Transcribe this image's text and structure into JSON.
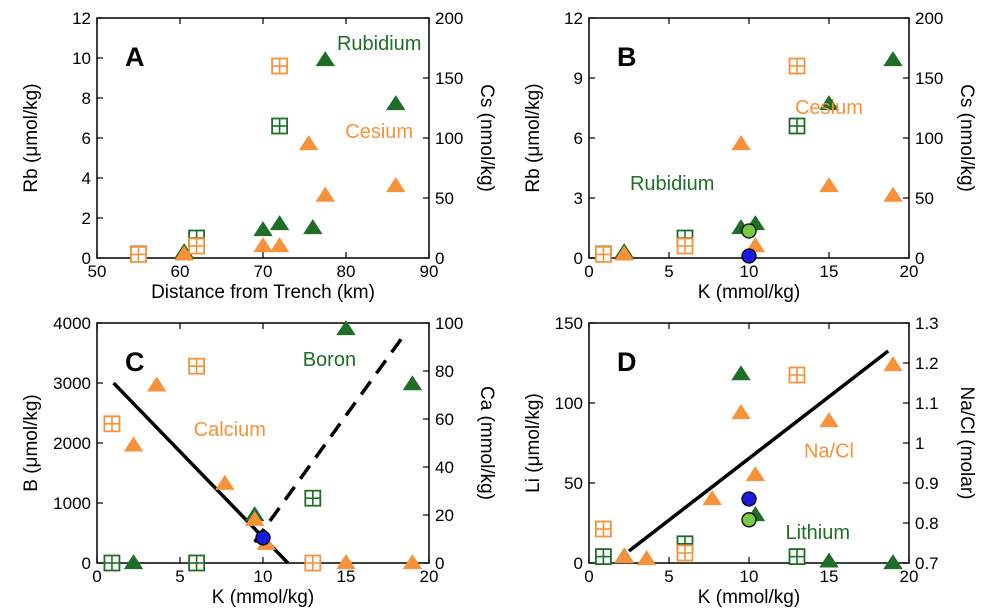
{
  "colors": {
    "orange": "#f7923a",
    "green": "#1e6e27",
    "blue": "#1a1ae0",
    "lightgreen": "#7ac943",
    "line": "#000000"
  },
  "chart_data": [
    {
      "id": "A",
      "type": "scatter",
      "letter": "A",
      "xlabel": "Distance from Trench (km)",
      "ylabel": "Rb (μmol/kg)",
      "y2label": "Cs (nmol/kg)",
      "xlim": [
        50,
        90
      ],
      "ylim": [
        0,
        12
      ],
      "y2lim": [
        0,
        200
      ],
      "xticks": [
        "50",
        "60",
        "70",
        "80",
        "90"
      ],
      "yticks": [
        "0",
        "2",
        "4",
        "6",
        "8",
        "10",
        "12"
      ],
      "y2ticks": [
        "0",
        "50",
        "100",
        "150",
        "200"
      ],
      "annotations": [
        {
          "text": "Rubidium",
          "color": "green",
          "x": 84,
          "y": 10.4
        },
        {
          "text": "Cesium",
          "color": "orange",
          "x": 84,
          "y": 6.0
        }
      ],
      "series": [
        {
          "axis": "left",
          "marker": "boxplus",
          "color": "green",
          "points": [
            [
              55,
              0.2
            ],
            [
              62,
              1.0
            ],
            [
              72,
              6.6
            ]
          ]
        },
        {
          "axis": "left",
          "marker": "triangle",
          "color": "green",
          "points": [
            [
              60.5,
              0.3
            ],
            [
              70,
              1.4
            ],
            [
              72,
              1.7
            ],
            [
              76,
              1.5
            ],
            [
              77.5,
              9.9
            ],
            [
              86,
              7.7
            ]
          ]
        },
        {
          "axis": "right",
          "marker": "boxplus",
          "color": "orange",
          "points": [
            [
              55,
              3
            ],
            [
              62,
              10
            ],
            [
              72,
              160
            ]
          ]
        },
        {
          "axis": "right",
          "marker": "triangle",
          "color": "orange",
          "points": [
            [
              60.5,
              3
            ],
            [
              70,
              10
            ],
            [
              72,
              10
            ],
            [
              75.5,
              95
            ],
            [
              77.5,
              52
            ],
            [
              86,
              60
            ]
          ]
        }
      ]
    },
    {
      "id": "B",
      "type": "scatter",
      "letter": "B",
      "xlabel": "K (mmol/kg)",
      "ylabel": "Rb (μmol/kg)",
      "y2label": "Cs (nmol/kg)",
      "xlim": [
        0,
        20
      ],
      "ylim": [
        0,
        12
      ],
      "y2lim": [
        0,
        200
      ],
      "xticks": [
        "0",
        "5",
        "10",
        "15",
        "20"
      ],
      "yticks": [
        "0",
        "3",
        "6",
        "9",
        "12"
      ],
      "y2ticks": [
        "0",
        "50",
        "100",
        "150",
        "200"
      ],
      "annotations": [
        {
          "text": "Rubidium",
          "color": "green",
          "x": 5.2,
          "y": 3.4
        },
        {
          "text": "Cesium",
          "color": "orange",
          "x": 15,
          "y": 7.2
        }
      ],
      "series": [
        {
          "axis": "left",
          "marker": "boxplus",
          "color": "green",
          "points": [
            [
              0.9,
              0.2
            ],
            [
              6,
              1.0
            ],
            [
              13,
              6.6
            ]
          ]
        },
        {
          "axis": "left",
          "marker": "triangle",
          "color": "green",
          "points": [
            [
              2.2,
              0.3
            ],
            [
              9.5,
              1.5
            ],
            [
              10.4,
              1.7
            ],
            [
              15,
              7.7
            ],
            [
              19,
              9.9
            ]
          ]
        },
        {
          "axis": "right",
          "marker": "boxplus",
          "color": "orange",
          "points": [
            [
              0.9,
              3
            ],
            [
              6,
              10
            ],
            [
              13,
              160
            ]
          ]
        },
        {
          "axis": "right",
          "marker": "triangle",
          "color": "orange",
          "points": [
            [
              2.2,
              3
            ],
            [
              9.5,
              95
            ],
            [
              10.4,
              10
            ],
            [
              15,
              60
            ],
            [
              19,
              52
            ]
          ]
        },
        {
          "axis": "left",
          "marker": "circle",
          "color": "lightgreen",
          "points": [
            [
              10,
              1.35
            ]
          ]
        },
        {
          "axis": "left",
          "marker": "circle",
          "color": "blue",
          "points": [
            [
              10,
              0.1
            ]
          ]
        }
      ]
    },
    {
      "id": "C",
      "type": "scatter",
      "letter": "C",
      "xlabel": "K (mmol/kg)",
      "ylabel": "B (μmol/kg)",
      "y2label": "Ca (mmol/kg)",
      "xlim": [
        0,
        20
      ],
      "ylim": [
        0,
        4000
      ],
      "y2lim": [
        0,
        100
      ],
      "xticks": [
        "0",
        "5",
        "10",
        "15",
        "20"
      ],
      "yticks": [
        "0",
        "1000",
        "2000",
        "3000",
        "4000"
      ],
      "y2ticks": [
        "0",
        "20",
        "40",
        "60",
        "80",
        "100"
      ],
      "annotations": [
        {
          "text": "Boron",
          "color": "green",
          "x": 14,
          "y": 3280
        },
        {
          "text": "Calcium",
          "color": "orange",
          "x": 8,
          "y": 2120
        }
      ],
      "lines": [
        {
          "style": "solid",
          "points": [
            [
              1,
              3000
            ],
            [
              11.5,
              0
            ]
          ]
        },
        {
          "style": "dashed",
          "points": [
            [
              9.5,
              350
            ],
            [
              18.5,
              3800
            ]
          ]
        }
      ],
      "series": [
        {
          "axis": "left",
          "marker": "boxplus",
          "color": "green",
          "points": [
            [
              0.9,
              0
            ],
            [
              6,
              0
            ],
            [
              13,
              1080
            ]
          ]
        },
        {
          "axis": "left",
          "marker": "triangle",
          "color": "green",
          "points": [
            [
              2.2,
              0
            ],
            [
              9.5,
              800
            ],
            [
              15,
              3900
            ],
            [
              19,
              2980
            ]
          ]
        },
        {
          "axis": "right",
          "marker": "boxplus",
          "color": "orange",
          "points": [
            [
              0.9,
              58
            ],
            [
              6,
              82
            ],
            [
              13,
              0
            ]
          ]
        },
        {
          "axis": "right",
          "marker": "triangle",
          "color": "orange",
          "points": [
            [
              2.2,
              49
            ],
            [
              3.6,
              74
            ],
            [
              7.7,
              33
            ],
            [
              9.5,
              18
            ],
            [
              10.2,
              8
            ],
            [
              15,
              0
            ],
            [
              19,
              0
            ]
          ]
        },
        {
          "axis": "left",
          "marker": "circle",
          "color": "blue",
          "points": [
            [
              10,
              420
            ]
          ]
        }
      ]
    },
    {
      "id": "D",
      "type": "scatter",
      "letter": "D",
      "xlabel": "K (mmol/kg)",
      "ylabel": "Li (μmol/kg)",
      "y2label": "Na/Cl (molar)",
      "xlim": [
        0,
        20
      ],
      "ylim": [
        0,
        150
      ],
      "y2lim": [
        0.7,
        1.3
      ],
      "xticks": [
        "0",
        "5",
        "10",
        "15",
        "20"
      ],
      "yticks": [
        "0",
        "50",
        "100",
        "150"
      ],
      "y2ticks": [
        "0.7",
        "0.8",
        "0.9",
        "1",
        "1.1",
        "1.2",
        "1.3"
      ],
      "annotations": [
        {
          "text": "Na/Cl",
          "color": "orange",
          "x": 15,
          "y": 66
        },
        {
          "text": "Lithium",
          "color": "green",
          "x": 14.3,
          "y": 15
        }
      ],
      "lines": [
        {
          "style": "solid",
          "axis": "right",
          "points": [
            [
              2.5,
              0.73
            ],
            [
              18.7,
              1.23
            ]
          ]
        }
      ],
      "series": [
        {
          "axis": "left",
          "marker": "boxplus",
          "color": "green",
          "points": [
            [
              0.9,
              4
            ],
            [
              6,
              12
            ],
            [
              13,
              4
            ]
          ]
        },
        {
          "axis": "left",
          "marker": "triangle",
          "color": "green",
          "points": [
            [
              2.2,
              4
            ],
            [
              9.5,
              118
            ],
            [
              10.4,
              30
            ],
            [
              15,
              1
            ],
            [
              19,
              0
            ]
          ]
        },
        {
          "axis": "right",
          "marker": "boxplus",
          "color": "orange",
          "points": [
            [
              0.9,
              0.785
            ],
            [
              6,
              0.725
            ],
            [
              13,
              1.17
            ]
          ]
        },
        {
          "axis": "right",
          "marker": "triangle",
          "color": "orange",
          "points": [
            [
              2.2,
              0.715
            ],
            [
              3.6,
              0.71
            ],
            [
              7.7,
              0.86
            ],
            [
              9.5,
              1.075
            ],
            [
              10.4,
              0.92
            ],
            [
              15,
              1.055
            ],
            [
              19,
              1.195
            ]
          ]
        },
        {
          "axis": "left",
          "marker": "circle",
          "color": "blue",
          "points": [
            [
              10,
              40
            ]
          ]
        },
        {
          "axis": "left",
          "marker": "circle",
          "color": "lightgreen",
          "points": [
            [
              10,
              27
            ]
          ]
        }
      ]
    }
  ]
}
